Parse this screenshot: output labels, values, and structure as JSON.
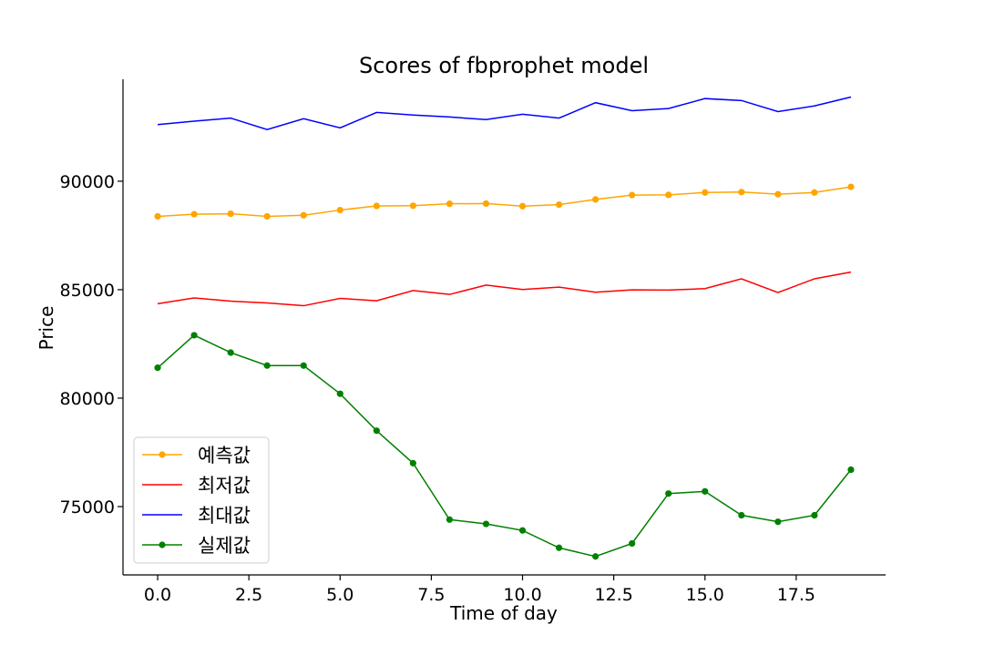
{
  "chart_data": {
    "type": "line",
    "title": "Scores of fbprophet model",
    "xlabel": "Time of day",
    "ylabel": "Price",
    "xlim": [
      -0.95,
      19.95
    ],
    "ylim": [
      71850,
      94700
    ],
    "x_ticks": [
      0.0,
      2.5,
      5.0,
      7.5,
      10.0,
      12.5,
      15.0,
      17.5
    ],
    "x_tick_labels": [
      "0.0",
      "2.5",
      "5.0",
      "7.5",
      "10.0",
      "12.5",
      "15.0",
      "17.5"
    ],
    "y_ticks": [
      75000,
      80000,
      85000,
      90000
    ],
    "y_tick_labels": [
      "75000",
      "80000",
      "85000",
      "90000"
    ],
    "grid": false,
    "legend_position": "lower-left",
    "x": [
      0,
      1,
      2,
      3,
      4,
      5,
      6,
      7,
      8,
      9,
      10,
      11,
      12,
      13,
      14,
      15,
      16,
      17,
      18,
      19
    ],
    "series": [
      {
        "name": "예측값",
        "color": "#ffa500",
        "marker": true,
        "values": [
          88380,
          88480,
          88500,
          88380,
          88430,
          88670,
          88860,
          88870,
          88960,
          88970,
          88850,
          88920,
          89160,
          89360,
          89370,
          89480,
          89500,
          89400,
          89480,
          89740
        ]
      },
      {
        "name": "최저값",
        "color": "#ff0000",
        "marker": false,
        "values": [
          84350,
          84620,
          84470,
          84390,
          84260,
          84600,
          84490,
          84960,
          84780,
          85210,
          85010,
          85120,
          84880,
          84990,
          84980,
          85050,
          85500,
          84870,
          85500,
          85810
        ]
      },
      {
        "name": "최대값",
        "color": "#0000ff",
        "marker": false,
        "values": [
          92610,
          92770,
          92910,
          92380,
          92880,
          92460,
          93170,
          93050,
          92960,
          92840,
          93090,
          92910,
          93620,
          93250,
          93350,
          93810,
          93720,
          93210,
          93470,
          93880
        ]
      },
      {
        "name": "실제값",
        "color": "#008000",
        "marker": true,
        "values": [
          81400,
          82900,
          82100,
          81500,
          81500,
          80200,
          78500,
          77000,
          74400,
          74200,
          73900,
          73100,
          72700,
          73300,
          75600,
          75700,
          74600,
          74300,
          74600,
          76700
        ]
      }
    ]
  }
}
